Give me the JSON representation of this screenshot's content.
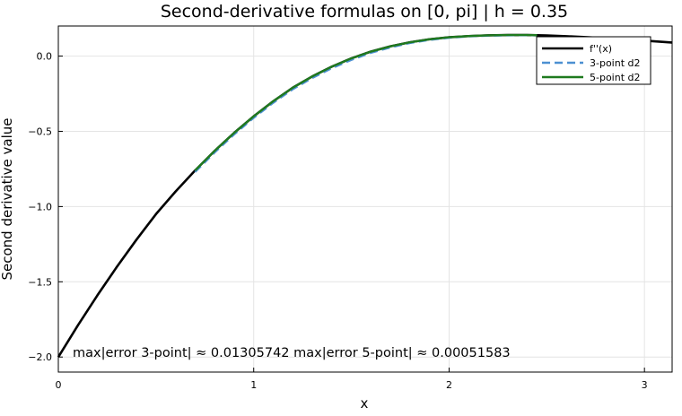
{
  "chart_data": {
    "type": "line",
    "title": "Second-derivative formulas on [0, pi]  |  h = 0.35",
    "xlabel": "x",
    "ylabel": "Second derivative value",
    "xlim": [
      0,
      3.14159
    ],
    "ylim": [
      -2.1,
      0.2
    ],
    "xticks": [
      0,
      1,
      2,
      3
    ],
    "xtick_labels": [
      "0",
      "1",
      "2",
      "3"
    ],
    "yticks": [
      -2.0,
      -1.5,
      -1.0,
      -0.5,
      0.0
    ],
    "ytick_labels": [
      "−2.0",
      "−1.5",
      "−1.0",
      "−0.5",
      "0.0"
    ],
    "grid": true,
    "legend_position": "top-right",
    "annotation": "max|error 3-point| ≈ 0.01305742   max|error 5-point| ≈ 0.00051583",
    "series": [
      {
        "name": "f''(x)",
        "color": "#000000",
        "style": "solid",
        "x": [
          0,
          0.1,
          0.2,
          0.3,
          0.4,
          0.5,
          0.6,
          0.7,
          0.8,
          0.9,
          1.0,
          1.1,
          1.2,
          1.3,
          1.4,
          1.5,
          1.6,
          1.7,
          1.8,
          1.9,
          2.0,
          2.1,
          2.2,
          2.3,
          2.4,
          2.5,
          2.6,
          2.7,
          2.8,
          2.9,
          3.0,
          3.1,
          3.14
        ],
        "y": [
          -2.0,
          -1.79,
          -1.59,
          -1.4,
          -1.22,
          -1.05,
          -0.9,
          -0.76,
          -0.63,
          -0.51,
          -0.4,
          -0.3,
          -0.21,
          -0.135,
          -0.07,
          -0.015,
          0.03,
          0.065,
          0.092,
          0.112,
          0.125,
          0.133,
          0.138,
          0.14,
          0.14,
          0.137,
          0.132,
          0.126,
          0.119,
          0.111,
          0.103,
          0.094,
          0.09
        ]
      },
      {
        "name": "3-point d2",
        "color": "#4c90d2",
        "style": "dashed",
        "x": [
          0.7,
          0.8,
          0.9,
          1.0,
          1.1,
          1.2,
          1.3,
          1.4,
          1.5,
          1.6,
          1.7,
          1.8,
          1.9,
          2.0,
          2.1,
          2.2,
          2.3,
          2.4,
          2.45
        ],
        "y": [
          -0.77,
          -0.64,
          -0.52,
          -0.41,
          -0.31,
          -0.22,
          -0.145,
          -0.08,
          -0.025,
          0.022,
          0.058,
          0.087,
          0.108,
          0.122,
          0.131,
          0.136,
          0.138,
          0.139,
          0.138
        ]
      },
      {
        "name": "5-point d2",
        "color": "#1f7a1f",
        "style": "solid",
        "x": [
          0.7,
          0.8,
          0.9,
          1.0,
          1.1,
          1.2,
          1.3,
          1.4,
          1.5,
          1.6,
          1.7,
          1.8,
          1.9,
          2.0,
          2.1,
          2.2,
          2.3,
          2.4,
          2.45
        ],
        "y": [
          -0.76,
          -0.63,
          -0.51,
          -0.4,
          -0.3,
          -0.21,
          -0.135,
          -0.07,
          -0.015,
          0.03,
          0.065,
          0.092,
          0.112,
          0.125,
          0.133,
          0.138,
          0.14,
          0.14,
          0.139
        ]
      }
    ]
  }
}
